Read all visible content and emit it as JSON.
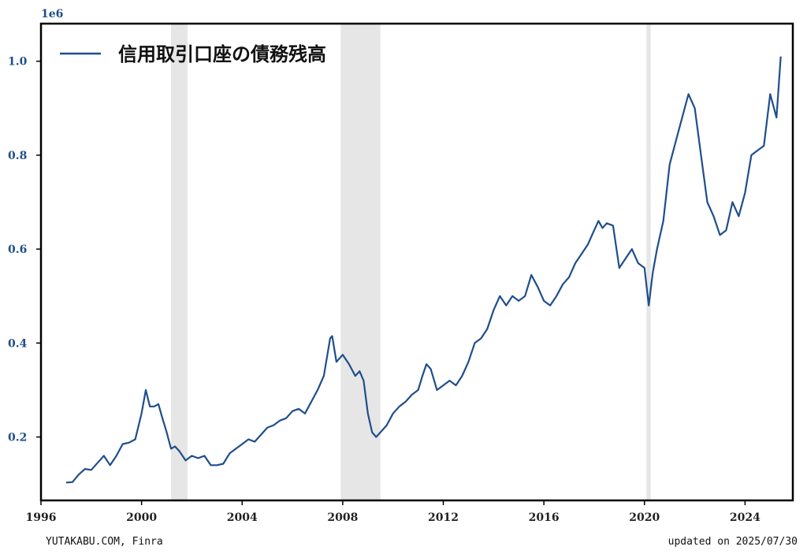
{
  "chart_data": {
    "type": "line",
    "y_offset_label": "1e6",
    "xlim": [
      1996.0,
      2025.9
    ],
    "ylim": [
      0.065,
      1.08
    ],
    "xticks": [
      1996,
      2000,
      2004,
      2008,
      2012,
      2016,
      2020,
      2024
    ],
    "yticks": [
      0.2,
      0.4,
      0.6,
      0.8,
      1.0
    ],
    "ytick_labels": [
      "0.2",
      "0.4",
      "0.6",
      "0.8",
      "1.0"
    ],
    "grid": false,
    "legend_position": "top-left",
    "shaded_periods": [
      {
        "start": 2001.17,
        "end": 2001.83
      },
      {
        "start": 2007.92,
        "end": 2009.5
      },
      {
        "start": 2020.08,
        "end": 2020.25
      }
    ],
    "series": [
      {
        "name": "信用取引口座の債務残高",
        "color": "#1f4e8c",
        "points": [
          [
            1997.0,
            0.103
          ],
          [
            1997.25,
            0.104
          ],
          [
            1997.5,
            0.12
          ],
          [
            1997.75,
            0.132
          ],
          [
            1998.0,
            0.13
          ],
          [
            1998.25,
            0.145
          ],
          [
            1998.5,
            0.16
          ],
          [
            1998.75,
            0.14
          ],
          [
            1999.0,
            0.16
          ],
          [
            1999.25,
            0.185
          ],
          [
            1999.5,
            0.188
          ],
          [
            1999.75,
            0.195
          ],
          [
            2000.0,
            0.25
          ],
          [
            2000.17,
            0.3
          ],
          [
            2000.33,
            0.265
          ],
          [
            2000.5,
            0.265
          ],
          [
            2000.67,
            0.27
          ],
          [
            2000.83,
            0.24
          ],
          [
            2001.0,
            0.21
          ],
          [
            2001.17,
            0.175
          ],
          [
            2001.33,
            0.18
          ],
          [
            2001.5,
            0.17
          ],
          [
            2001.75,
            0.15
          ],
          [
            2002.0,
            0.16
          ],
          [
            2002.25,
            0.155
          ],
          [
            2002.5,
            0.16
          ],
          [
            2002.75,
            0.14
          ],
          [
            2003.0,
            0.14
          ],
          [
            2003.25,
            0.143
          ],
          [
            2003.5,
            0.165
          ],
          [
            2003.75,
            0.175
          ],
          [
            2004.0,
            0.185
          ],
          [
            2004.25,
            0.195
          ],
          [
            2004.5,
            0.19
          ],
          [
            2004.75,
            0.205
          ],
          [
            2005.0,
            0.22
          ],
          [
            2005.25,
            0.225
          ],
          [
            2005.5,
            0.235
          ],
          [
            2005.75,
            0.24
          ],
          [
            2006.0,
            0.255
          ],
          [
            2006.25,
            0.26
          ],
          [
            2006.5,
            0.25
          ],
          [
            2006.75,
            0.275
          ],
          [
            2007.0,
            0.3
          ],
          [
            2007.25,
            0.33
          ],
          [
            2007.5,
            0.41
          ],
          [
            2007.58,
            0.415
          ],
          [
            2007.75,
            0.36
          ],
          [
            2008.0,
            0.375
          ],
          [
            2008.25,
            0.355
          ],
          [
            2008.5,
            0.33
          ],
          [
            2008.67,
            0.34
          ],
          [
            2008.83,
            0.32
          ],
          [
            2009.0,
            0.25
          ],
          [
            2009.17,
            0.21
          ],
          [
            2009.33,
            0.2
          ],
          [
            2009.5,
            0.21
          ],
          [
            2009.75,
            0.225
          ],
          [
            2010.0,
            0.25
          ],
          [
            2010.25,
            0.265
          ],
          [
            2010.5,
            0.275
          ],
          [
            2010.75,
            0.29
          ],
          [
            2011.0,
            0.3
          ],
          [
            2011.17,
            0.33
          ],
          [
            2011.33,
            0.355
          ],
          [
            2011.5,
            0.345
          ],
          [
            2011.75,
            0.3
          ],
          [
            2012.0,
            0.31
          ],
          [
            2012.25,
            0.32
          ],
          [
            2012.5,
            0.31
          ],
          [
            2012.75,
            0.33
          ],
          [
            2013.0,
            0.36
          ],
          [
            2013.25,
            0.4
          ],
          [
            2013.5,
            0.41
          ],
          [
            2013.75,
            0.43
          ],
          [
            2014.0,
            0.47
          ],
          [
            2014.25,
            0.5
          ],
          [
            2014.5,
            0.48
          ],
          [
            2014.75,
            0.5
          ],
          [
            2015.0,
            0.49
          ],
          [
            2015.25,
            0.5
          ],
          [
            2015.5,
            0.545
          ],
          [
            2015.75,
            0.52
          ],
          [
            2016.0,
            0.49
          ],
          [
            2016.25,
            0.48
          ],
          [
            2016.5,
            0.5
          ],
          [
            2016.75,
            0.525
          ],
          [
            2017.0,
            0.54
          ],
          [
            2017.25,
            0.57
          ],
          [
            2017.5,
            0.59
          ],
          [
            2017.75,
            0.61
          ],
          [
            2018.0,
            0.64
          ],
          [
            2018.17,
            0.66
          ],
          [
            2018.33,
            0.645
          ],
          [
            2018.5,
            0.655
          ],
          [
            2018.75,
            0.65
          ],
          [
            2019.0,
            0.56
          ],
          [
            2019.25,
            0.58
          ],
          [
            2019.5,
            0.6
          ],
          [
            2019.75,
            0.57
          ],
          [
            2020.0,
            0.56
          ],
          [
            2020.17,
            0.48
          ],
          [
            2020.33,
            0.55
          ],
          [
            2020.5,
            0.6
          ],
          [
            2020.75,
            0.66
          ],
          [
            2021.0,
            0.78
          ],
          [
            2021.25,
            0.83
          ],
          [
            2021.5,
            0.88
          ],
          [
            2021.75,
            0.93
          ],
          [
            2022.0,
            0.9
          ],
          [
            2022.25,
            0.8
          ],
          [
            2022.5,
            0.7
          ],
          [
            2022.75,
            0.67
          ],
          [
            2023.0,
            0.63
          ],
          [
            2023.25,
            0.64
          ],
          [
            2023.5,
            0.7
          ],
          [
            2023.75,
            0.67
          ],
          [
            2024.0,
            0.72
          ],
          [
            2024.25,
            0.8
          ],
          [
            2024.5,
            0.81
          ],
          [
            2024.75,
            0.82
          ],
          [
            2025.0,
            0.93
          ],
          [
            2025.25,
            0.88
          ],
          [
            2025.42,
            1.01
          ]
        ]
      }
    ]
  },
  "footer": {
    "source": "YUTAKABU.COM, Finra",
    "updated": "updated on 2025/07/30"
  }
}
